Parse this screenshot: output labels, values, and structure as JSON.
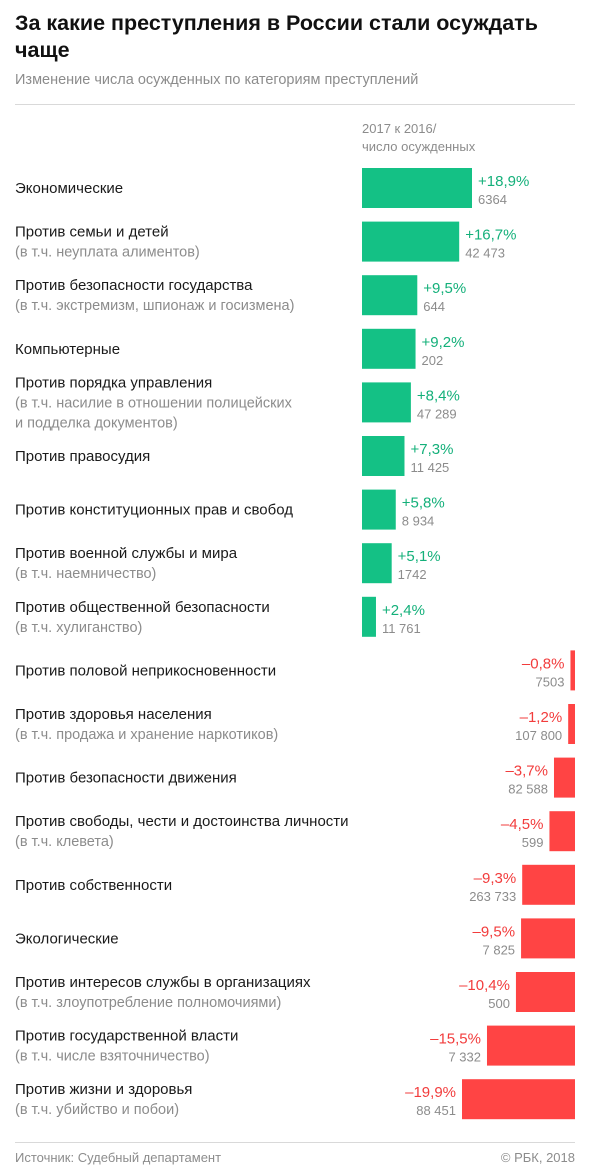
{
  "header": {
    "title": "За какие преступления в России стали осуждать чаще",
    "subtitle": "Изменение числа осужденных по категориям преступлений",
    "column_header_line1": "2017 к 2016/",
    "column_header_line2": "число осужденных"
  },
  "footer": {
    "source": "Источник: Судебный департамент",
    "credit": "© РБК, 2018"
  },
  "colors": {
    "positive": "#14c185",
    "negative": "#ff4444",
    "positive_text": "#14b07a",
    "negative_text": "#f23c3c",
    "count_text": "#8c8c8c"
  },
  "chart_data": {
    "type": "bar",
    "orientation": "horizontal",
    "unit": "%",
    "series": [
      {
        "values": [
          18.9,
          16.7,
          9.5,
          9.2,
          8.4,
          7.3,
          5.8,
          5.1,
          2.4,
          -0.8,
          -1.2,
          -3.7,
          -4.5,
          -9.3,
          -9.5,
          -10.4,
          -15.5,
          -19.9
        ]
      }
    ],
    "categories": [
      "Экономические",
      "Против семьи и детей",
      "Против безопасности государства",
      "Компьютерные",
      "Против порядка управления",
      "Против правосудия",
      "Против конституционных прав и свобод",
      "Против военной службы и мира",
      "Против общественной безопасности",
      "Против половой неприкосновенности",
      "Против здоровья населения",
      "Против безопасности движения",
      "Против свободы, чести и достоинства личности",
      "Против собственности",
      "Экологические",
      "Против интересов службы в организациях",
      "Против государственной власти",
      "Против жизни и здоровья"
    ],
    "rows": [
      {
        "label": "Экономические",
        "note": [],
        "change": 18.9,
        "change_label": "+18,9%",
        "count": "6364"
      },
      {
        "label": "Против семьи и детей",
        "note": [
          "(в т.ч. неуплата алиментов)"
        ],
        "change": 16.7,
        "change_label": "+16,7%",
        "count": "42 473"
      },
      {
        "label": "Против безопасности государства",
        "note": [
          "(в т.ч. экстремизм, шпионаж и госизмена)"
        ],
        "change": 9.5,
        "change_label": "+9,5%",
        "count": "644"
      },
      {
        "label": "Компьютерные",
        "note": [],
        "change": 9.2,
        "change_label": "+9,2%",
        "count": "202"
      },
      {
        "label": "Против порядка управления",
        "note": [
          "(в т.ч. насилие в отношении полицейских",
          "и подделка документов)"
        ],
        "change": 8.4,
        "change_label": "+8,4%",
        "count": "47 289"
      },
      {
        "label": "Против правосудия",
        "note": [],
        "change": 7.3,
        "change_label": "+7,3%",
        "count": "11 425"
      },
      {
        "label": "Против конституционных прав и свобод",
        "note": [],
        "change": 5.8,
        "change_label": "+5,8%",
        "count": "8 934"
      },
      {
        "label": "Против военной службы и мира",
        "note": [
          "(в т.ч. наемничество)"
        ],
        "change": 5.1,
        "change_label": "+5,1%",
        "count": "1742"
      },
      {
        "label": "Против общественной безопасности",
        "note": [
          "(в т.ч. хулиганство)"
        ],
        "change": 2.4,
        "change_label": "+2,4%",
        "count": "11 761"
      },
      {
        "label": "Против половой неприкосновенности",
        "note": [],
        "change": -0.8,
        "change_label": "–0,8%",
        "count": "7503"
      },
      {
        "label": "Против здоровья населения",
        "note": [
          "(в т.ч. продажа и хранение наркотиков)"
        ],
        "change": -1.2,
        "change_label": "–1,2%",
        "count": "107 800"
      },
      {
        "label": "Против безопасности движения",
        "note": [],
        "change": -3.7,
        "change_label": "–3,7%",
        "count": "82 588"
      },
      {
        "label": "Против свободы, чести и достоинства личности",
        "note": [
          "(в т.ч. клевета)"
        ],
        "change": -4.5,
        "change_label": "–4,5%",
        "count": "599"
      },
      {
        "label": "Против собственности",
        "note": [],
        "change": -9.3,
        "change_label": "–9,3%",
        "count": "263 733"
      },
      {
        "label": "Экологические",
        "note": [],
        "change": -9.5,
        "change_label": "–9,5%",
        "count": "7 825"
      },
      {
        "label": "Против интересов службы в организациях",
        "note": [
          "(в т.ч. злоупотребление полномочиями)"
        ],
        "change": -10.4,
        "change_label": "–10,4%",
        "count": "500"
      },
      {
        "label": "Против государственной власти",
        "note": [
          "(в т.ч. числе взяточничество)"
        ],
        "change": -15.5,
        "change_label": "–15,5%",
        "count": "7 332"
      },
      {
        "label": "Против жизни и здоровья",
        "note": [
          "(в т.ч. убийство и побои)"
        ],
        "change": -19.9,
        "change_label": "–19,9%",
        "count": "88 451"
      }
    ]
  }
}
